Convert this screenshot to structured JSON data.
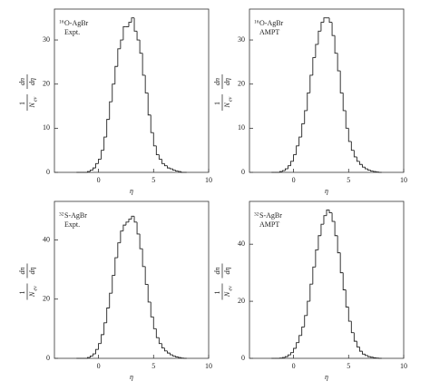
{
  "chart_data": [
    {
      "type": "histogram",
      "xlabel": "η",
      "ylabel": {
        "numerator1": "1",
        "denominator1": "N",
        "subscript": "ev",
        "numerator2": "dn",
        "denominator2": "dη"
      },
      "annotation": {
        "superscript": "16",
        "text": "O-AgBr",
        "subtitle": "Expt."
      },
      "bins": [
        -2,
        -1.75,
        -1.5,
        -1.25,
        -1,
        -0.75,
        -0.5,
        -0.25,
        0,
        0.25,
        0.5,
        0.75,
        1,
        1.25,
        1.5,
        1.75,
        2,
        2.25,
        2.5,
        2.75,
        3,
        3.25,
        3.5,
        3.75,
        4,
        4.25,
        4.5,
        4.75,
        5,
        5.25,
        5.5,
        5.75,
        6,
        6.25,
        6.5,
        6.75,
        7,
        7.25,
        7.5,
        7.75,
        8
      ],
      "values": [
        0,
        0,
        0,
        0,
        0.2,
        0.5,
        1,
        2,
        3,
        5,
        8,
        12,
        16,
        20,
        24,
        28,
        30,
        33,
        33,
        34,
        35,
        32,
        30,
        27,
        22,
        18,
        13,
        9,
        6,
        4,
        3,
        2,
        1.5,
        1,
        0.8,
        0.5,
        0.3,
        0.2,
        0,
        0
      ],
      "color": "#222222",
      "xlim": [
        -4,
        10
      ],
      "ylim": [
        0,
        37
      ],
      "xticks": [
        0,
        5,
        10
      ],
      "yticks": [
        0,
        10,
        20,
        30
      ]
    },
    {
      "type": "histogram",
      "xlabel": "η",
      "ylabel": {
        "numerator1": "1",
        "denominator1": "N",
        "subscript": "ev",
        "numerator2": "dn",
        "denominator2": "dη"
      },
      "annotation": {
        "superscript": "16",
        "text": "O-AgBr",
        "subtitle": "AMPT"
      },
      "bins": [
        -2,
        -1.75,
        -1.5,
        -1.25,
        -1,
        -0.75,
        -0.5,
        -0.25,
        0,
        0.25,
        0.5,
        0.75,
        1,
        1.25,
        1.5,
        1.75,
        2,
        2.25,
        2.5,
        2.75,
        3,
        3.25,
        3.5,
        3.75,
        4,
        4.25,
        4.5,
        4.75,
        5,
        5.25,
        5.5,
        5.75,
        6,
        6.25,
        6.5,
        6.75,
        7,
        7.25,
        7.5,
        7.75,
        8
      ],
      "values": [
        0,
        0,
        0,
        0.2,
        0.4,
        0.8,
        1.5,
        2.5,
        4,
        6,
        8,
        11,
        14,
        18,
        22,
        26,
        29,
        32,
        34,
        35,
        35,
        34,
        31,
        27,
        23,
        18,
        14,
        10,
        7,
        5,
        3.5,
        2.5,
        1.8,
        1.2,
        0.8,
        0.5,
        0.3,
        0.2,
        0.1,
        0
      ],
      "color": "#222222",
      "xlim": [
        -4,
        10
      ],
      "ylim": [
        0,
        37
      ],
      "xticks": [
        0,
        5,
        10
      ],
      "yticks": [
        0,
        10,
        20,
        30
      ]
    },
    {
      "type": "histogram",
      "xlabel": "η",
      "ylabel": {
        "numerator1": "1",
        "denominator1": "N",
        "subscript": "ev",
        "numerator2": "dn",
        "denominator2": "dη"
      },
      "annotation": {
        "superscript": "32",
        "text": "S-AgBr",
        "subtitle": "Expt."
      },
      "bins": [
        -2,
        -1.75,
        -1.5,
        -1.25,
        -1,
        -0.75,
        -0.5,
        -0.25,
        0,
        0.25,
        0.5,
        0.75,
        1,
        1.25,
        1.5,
        1.75,
        2,
        2.25,
        2.5,
        2.75,
        3,
        3.25,
        3.5,
        3.75,
        4,
        4.25,
        4.5,
        4.75,
        5,
        5.25,
        5.5,
        5.75,
        6,
        6.25,
        6.5,
        6.75,
        7,
        7.25,
        7.5,
        7.75,
        8
      ],
      "values": [
        0,
        0,
        0,
        0,
        0.3,
        0.8,
        1.5,
        3,
        5,
        8,
        12,
        17,
        22,
        28,
        34,
        39,
        43,
        45,
        46,
        47,
        48,
        46,
        42,
        37,
        31,
        25,
        19,
        14,
        10,
        7,
        5,
        3.5,
        2.5,
        1.8,
        1.2,
        0.8,
        0.5,
        0.3,
        0.1,
        0
      ],
      "color": "#222222",
      "xlim": [
        -4,
        10
      ],
      "ylim": [
        0,
        53
      ],
      "xticks": [
        0,
        5,
        10
      ],
      "yticks": [
        0,
        20,
        40
      ]
    },
    {
      "type": "histogram",
      "xlabel": "η",
      "ylabel": {
        "numerator1": "1",
        "denominator1": "N",
        "subscript": "ev",
        "numerator2": "dn",
        "denominator2": "dη"
      },
      "annotation": {
        "superscript": "32",
        "text": "S-AgBr",
        "subtitle": "AMPT"
      },
      "bins": [
        -2,
        -1.75,
        -1.5,
        -1.25,
        -1,
        -0.75,
        -0.5,
        -0.25,
        0,
        0.25,
        0.5,
        0.75,
        1,
        1.25,
        1.5,
        1.75,
        2,
        2.25,
        2.5,
        2.75,
        3,
        3.25,
        3.5,
        3.75,
        4,
        4.25,
        4.5,
        4.75,
        5,
        5.25,
        5.5,
        5.75,
        6,
        6.25,
        6.5,
        6.75,
        7,
        7.25,
        7.5,
        7.75,
        8
      ],
      "values": [
        0,
        0,
        0,
        0.1,
        0.3,
        0.6,
        1.2,
        2,
        3.5,
        5.5,
        8,
        11,
        15,
        20,
        26,
        32,
        38,
        43,
        47,
        50,
        52,
        51,
        48,
        43,
        37,
        30,
        24,
        18,
        13,
        9,
        6,
        4,
        2.5,
        1.5,
        1,
        0.6,
        0.4,
        0.2,
        0.1,
        0
      ],
      "color": "#222222",
      "xlim": [
        -4,
        10
      ],
      "ylim": [
        0,
        55
      ],
      "xticks": [
        0,
        5,
        10
      ],
      "yticks": [
        0,
        20,
        40
      ]
    }
  ]
}
